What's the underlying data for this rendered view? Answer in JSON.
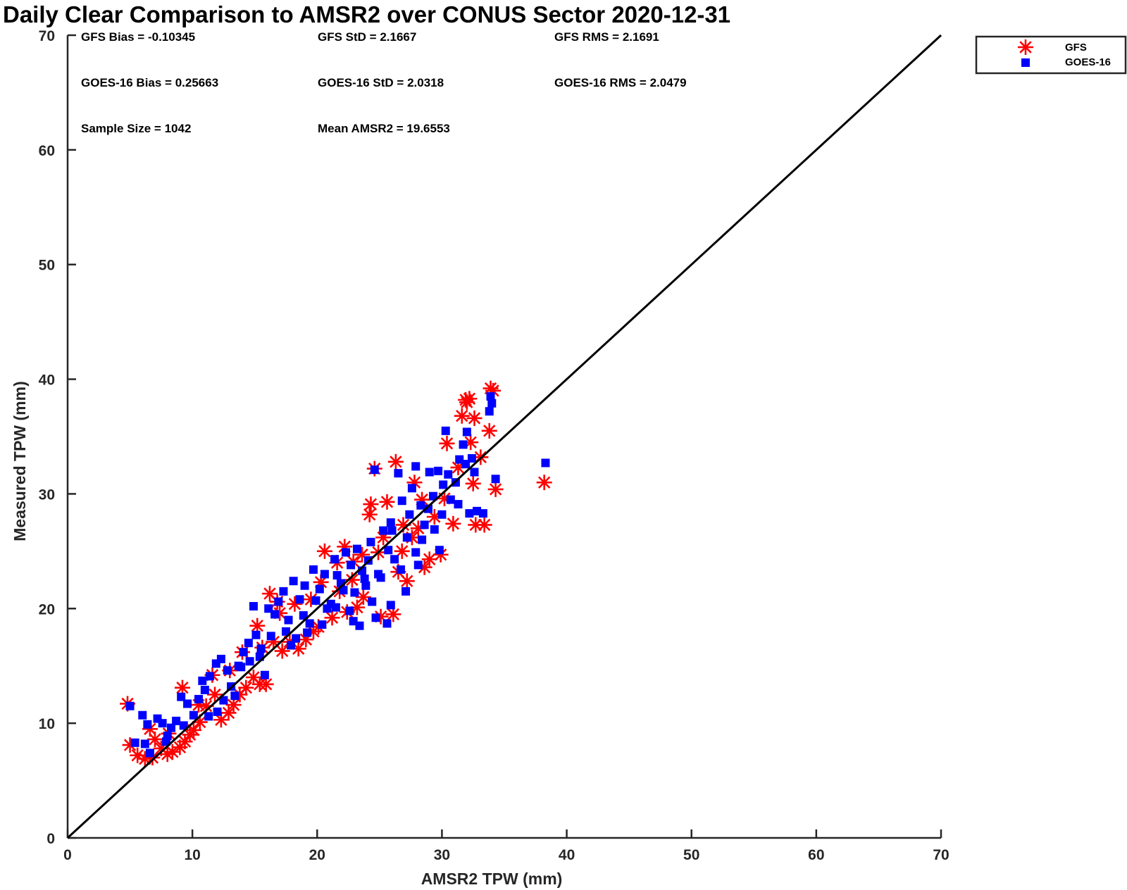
{
  "chart_data": {
    "type": "scatter",
    "title": "Daily Clear Comparison to AMSR2 over CONUS Sector 2020-12-31",
    "xlabel": "AMSR2 TPW (mm)",
    "ylabel": "Measured TPW (mm)",
    "xlim": [
      0,
      70
    ],
    "ylim": [
      0,
      70
    ],
    "xticks": [
      "0",
      "10",
      "20",
      "30",
      "40",
      "50",
      "60",
      "70"
    ],
    "yticks": [
      "0",
      "10",
      "20",
      "30",
      "40",
      "50",
      "60",
      "70"
    ],
    "grid": false,
    "legend_position": "outside-top-right",
    "reference_line": {
      "type": "one-to-one",
      "x": [
        0,
        70
      ],
      "y": [
        0,
        70
      ],
      "color": "#000000"
    },
    "stats": [
      [
        "GFS Bias = -0.10345",
        "GFS StD = 2.1667",
        "GFS RMS = 2.1691"
      ],
      [
        "GOES-16 Bias = 0.25663",
        "GOES-16 StD = 2.0318",
        "GOES-16 RMS = 2.0479"
      ],
      [
        "Sample Size = 1042",
        "Mean AMSR2 = 19.6553"
      ]
    ],
    "series": [
      {
        "name": "GFS",
        "marker": "asterisk",
        "color": "#ff0000",
        "points": [
          [
            4.8,
            11.7
          ],
          [
            5.0,
            8.1
          ],
          [
            5.6,
            7.2
          ],
          [
            6.2,
            6.9
          ],
          [
            6.8,
            7.0
          ],
          [
            7.5,
            7.8
          ],
          [
            8.0,
            7.3
          ],
          [
            8.4,
            7.5
          ],
          [
            9.0,
            7.9
          ],
          [
            9.2,
            13.1
          ],
          [
            9.8,
            9.0
          ],
          [
            10.1,
            9.4
          ],
          [
            10.6,
            10.1
          ],
          [
            11.1,
            11.5
          ],
          [
            11.8,
            12.5
          ],
          [
            12.3,
            10.3
          ],
          [
            12.9,
            10.9
          ],
          [
            13.3,
            11.6
          ],
          [
            13.8,
            12.5
          ],
          [
            14.3,
            13.1
          ],
          [
            14.9,
            14.0
          ],
          [
            15.4,
            13.4
          ],
          [
            15.9,
            13.4
          ],
          [
            15.6,
            16.6
          ],
          [
            15.2,
            18.5
          ],
          [
            16.2,
            21.3
          ],
          [
            16.5,
            17.1
          ],
          [
            17.2,
            16.3
          ],
          [
            17.8,
            17.1
          ],
          [
            18.5,
            16.5
          ],
          [
            19.1,
            17.3
          ],
          [
            19.7,
            18.0
          ],
          [
            20.1,
            18.4
          ],
          [
            20.6,
            25.0
          ],
          [
            21.2,
            19.2
          ],
          [
            21.6,
            24.0
          ],
          [
            22.2,
            25.4
          ],
          [
            22.8,
            22.5
          ],
          [
            22.4,
            19.7
          ],
          [
            23.2,
            20.1
          ],
          [
            23.7,
            21.0
          ],
          [
            24.2,
            28.2
          ],
          [
            24.3,
            29.1
          ],
          [
            24.6,
            32.2
          ],
          [
            25.1,
            19.3
          ],
          [
            25.6,
            29.3
          ],
          [
            26.1,
            19.5
          ],
          [
            26.3,
            32.8
          ],
          [
            26.5,
            23.2
          ],
          [
            26.8,
            25.0
          ],
          [
            27.2,
            22.4
          ],
          [
            27.8,
            31.0
          ],
          [
            28.1,
            27.0
          ],
          [
            28.6,
            23.6
          ],
          [
            29.0,
            24.3
          ],
          [
            29.4,
            28.0
          ],
          [
            29.9,
            24.7
          ],
          [
            30.2,
            29.6
          ],
          [
            30.4,
            34.4
          ],
          [
            30.9,
            27.4
          ],
          [
            31.3,
            32.3
          ],
          [
            31.6,
            36.8
          ],
          [
            31.9,
            38.2
          ],
          [
            32.0,
            38.0
          ],
          [
            32.2,
            38.3
          ],
          [
            32.3,
            34.5
          ],
          [
            32.5,
            30.9
          ],
          [
            32.6,
            36.6
          ],
          [
            32.7,
            27.3
          ],
          [
            33.1,
            33.2
          ],
          [
            33.4,
            27.3
          ],
          [
            33.8,
            35.5
          ],
          [
            33.9,
            39.2
          ],
          [
            34.1,
            39.0
          ],
          [
            34.3,
            30.4
          ],
          [
            38.2,
            31.0
          ],
          [
            11.6,
            14.2
          ],
          [
            13.0,
            14.6
          ],
          [
            14.0,
            16.2
          ],
          [
            10.5,
            11.6
          ],
          [
            18.2,
            20.4
          ],
          [
            20.3,
            22.3
          ],
          [
            22.9,
            24.1
          ],
          [
            24.9,
            24.9
          ],
          [
            26.9,
            27.3
          ],
          [
            28.4,
            29.5
          ],
          [
            25.3,
            26.2
          ],
          [
            21.8,
            21.5
          ],
          [
            19.5,
            20.8
          ],
          [
            17.0,
            19.6
          ],
          [
            16.8,
            20.6
          ],
          [
            23.6,
            24.7
          ],
          [
            27.6,
            26.2
          ],
          [
            9.4,
            8.4
          ],
          [
            8.1,
            9.1
          ],
          [
            7.0,
            8.6
          ],
          [
            6.6,
            9.5
          ]
        ]
      },
      {
        "name": "GOES-16",
        "marker": "square",
        "color": "#0000ff",
        "points": [
          [
            5.0,
            11.5
          ],
          [
            5.4,
            8.3
          ],
          [
            6.0,
            10.7
          ],
          [
            6.4,
            9.9
          ],
          [
            6.6,
            7.4
          ],
          [
            7.2,
            10.4
          ],
          [
            7.9,
            8.4
          ],
          [
            8.3,
            9.6
          ],
          [
            8.7,
            10.2
          ],
          [
            9.1,
            12.3
          ],
          [
            9.6,
            11.7
          ],
          [
            10.1,
            10.7
          ],
          [
            10.5,
            12.1
          ],
          [
            11.0,
            12.9
          ],
          [
            11.4,
            14.1
          ],
          [
            11.9,
            15.2
          ],
          [
            12.3,
            15.6
          ],
          [
            12.8,
            14.6
          ],
          [
            13.1,
            13.2
          ],
          [
            13.7,
            15.0
          ],
          [
            14.1,
            16.2
          ],
          [
            14.5,
            17.0
          ],
          [
            14.9,
            20.2
          ],
          [
            15.1,
            17.7
          ],
          [
            15.5,
            16.5
          ],
          [
            15.8,
            14.2
          ],
          [
            16.1,
            20.0
          ],
          [
            16.6,
            19.5
          ],
          [
            16.9,
            20.6
          ],
          [
            17.3,
            21.5
          ],
          [
            17.7,
            19.0
          ],
          [
            18.1,
            22.4
          ],
          [
            18.6,
            20.8
          ],
          [
            19.0,
            22.0
          ],
          [
            19.4,
            18.7
          ],
          [
            19.7,
            23.4
          ],
          [
            20.2,
            21.7
          ],
          [
            20.6,
            23.0
          ],
          [
            21.1,
            20.4
          ],
          [
            21.4,
            24.3
          ],
          [
            21.9,
            22.2
          ],
          [
            22.3,
            24.9
          ],
          [
            22.7,
            23.8
          ],
          [
            23.2,
            25.2
          ],
          [
            23.4,
            18.5
          ],
          [
            23.8,
            22.6
          ],
          [
            24.3,
            25.8
          ],
          [
            24.6,
            32.1
          ],
          [
            24.9,
            23.0
          ],
          [
            25.3,
            26.8
          ],
          [
            25.6,
            18.7
          ],
          [
            25.9,
            27.5
          ],
          [
            26.2,
            24.3
          ],
          [
            26.5,
            31.8
          ],
          [
            26.8,
            29.4
          ],
          [
            27.2,
            26.2
          ],
          [
            27.6,
            30.5
          ],
          [
            27.9,
            32.4
          ],
          [
            28.3,
            29.0
          ],
          [
            28.6,
            27.3
          ],
          [
            29.0,
            31.9
          ],
          [
            29.4,
            26.9
          ],
          [
            29.7,
            32.0
          ],
          [
            30.1,
            30.8
          ],
          [
            30.3,
            35.5
          ],
          [
            30.7,
            29.5
          ],
          [
            31.1,
            31.0
          ],
          [
            31.4,
            33.0
          ],
          [
            31.7,
            34.3
          ],
          [
            32.0,
            35.4
          ],
          [
            32.2,
            28.3
          ],
          [
            32.4,
            33.1
          ],
          [
            32.6,
            31.9
          ],
          [
            32.8,
            28.5
          ],
          [
            33.3,
            28.3
          ],
          [
            33.8,
            37.2
          ],
          [
            33.9,
            38.5
          ],
          [
            34.0,
            37.9
          ],
          [
            34.3,
            31.3
          ],
          [
            38.3,
            32.7
          ],
          [
            10.8,
            13.7
          ],
          [
            12.5,
            12.0
          ],
          [
            13.9,
            14.9
          ],
          [
            15.4,
            15.8
          ],
          [
            17.5,
            18.0
          ],
          [
            18.9,
            19.4
          ],
          [
            20.8,
            20.0
          ],
          [
            22.1,
            21.6
          ],
          [
            23.6,
            23.3
          ],
          [
            24.1,
            24.2
          ],
          [
            25.7,
            25.1
          ],
          [
            27.4,
            28.2
          ],
          [
            28.9,
            28.7
          ],
          [
            16.3,
            17.6
          ],
          [
            19.9,
            20.7
          ],
          [
            21.6,
            22.9
          ],
          [
            23.0,
            21.4
          ],
          [
            26.0,
            26.8
          ],
          [
            27.9,
            24.9
          ],
          [
            29.3,
            29.8
          ],
          [
            30.5,
            31.7
          ],
          [
            31.9,
            32.6
          ],
          [
            24.4,
            20.6
          ],
          [
            22.6,
            19.8
          ],
          [
            20.4,
            18.6
          ],
          [
            18.3,
            17.4
          ],
          [
            14.6,
            15.4
          ],
          [
            12.0,
            11.0
          ],
          [
            9.3,
            9.8
          ],
          [
            8.0,
            8.9
          ],
          [
            6.2,
            8.2
          ],
          [
            7.6,
            10.0
          ],
          [
            11.3,
            10.6
          ],
          [
            13.4,
            12.4
          ],
          [
            17.9,
            16.8
          ],
          [
            19.2,
            17.9
          ],
          [
            21.5,
            20.1
          ],
          [
            23.9,
            22.0
          ],
          [
            25.1,
            22.7
          ],
          [
            26.7,
            23.4
          ],
          [
            28.1,
            23.8
          ],
          [
            29.8,
            25.1
          ],
          [
            28.4,
            26.0
          ],
          [
            30.0,
            28.2
          ],
          [
            31.3,
            29.1
          ],
          [
            27.1,
            21.5
          ],
          [
            25.9,
            20.3
          ],
          [
            24.7,
            19.2
          ],
          [
            22.9,
            18.9
          ]
        ]
      }
    ]
  }
}
